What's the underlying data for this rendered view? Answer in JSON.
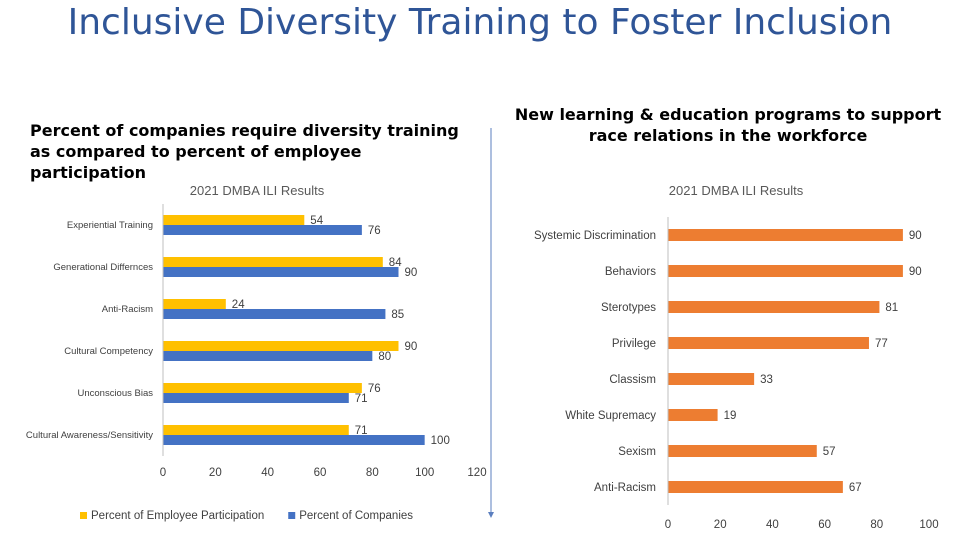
{
  "page": {
    "title": "Inclusive Diversity Training to Foster Inclusion",
    "left_heading": "Percent of companies require diversity training as compared to percent of employee participation",
    "right_heading": "New learning & education programs to support race relations in the workforce"
  },
  "chart_data": [
    {
      "type": "bar",
      "orientation": "horizontal",
      "title": "2021 DMBA ILI Results",
      "categories": [
        "Experiential Training",
        "Generational Differnces",
        "Anti-Racism",
        "Cultural Competency",
        "Unconscious Bias",
        "Cultural Awareness/Sensitivity"
      ],
      "series": [
        {
          "name": "Percent of Employee Participation",
          "color": "#ffc000",
          "values": [
            54,
            84,
            24,
            90,
            76,
            71
          ]
        },
        {
          "name": "Percent of Companies",
          "color": "#4472c4",
          "values": [
            76,
            90,
            85,
            80,
            71,
            100
          ]
        }
      ],
      "xlim": [
        0,
        120
      ],
      "xticks": [
        0,
        20,
        40,
        60,
        80,
        100,
        120
      ],
      "legend": "bottom",
      "grid": false
    },
    {
      "type": "bar",
      "orientation": "horizontal",
      "title": "2021 DMBA ILI Results",
      "categories": [
        "Systemic Discrimination",
        "Behaviors",
        "Sterotypes",
        "Privilege",
        "Classism",
        "White Supremacy",
        "Sexism",
        "Anti-Racism"
      ],
      "series": [
        {
          "color": "#ed7d31",
          "values": [
            90,
            90,
            81,
            77,
            33,
            19,
            57,
            67
          ]
        }
      ],
      "xlim": [
        0,
        100
      ],
      "xticks": [
        0,
        20,
        40,
        60,
        80,
        100
      ],
      "grid": false
    }
  ]
}
